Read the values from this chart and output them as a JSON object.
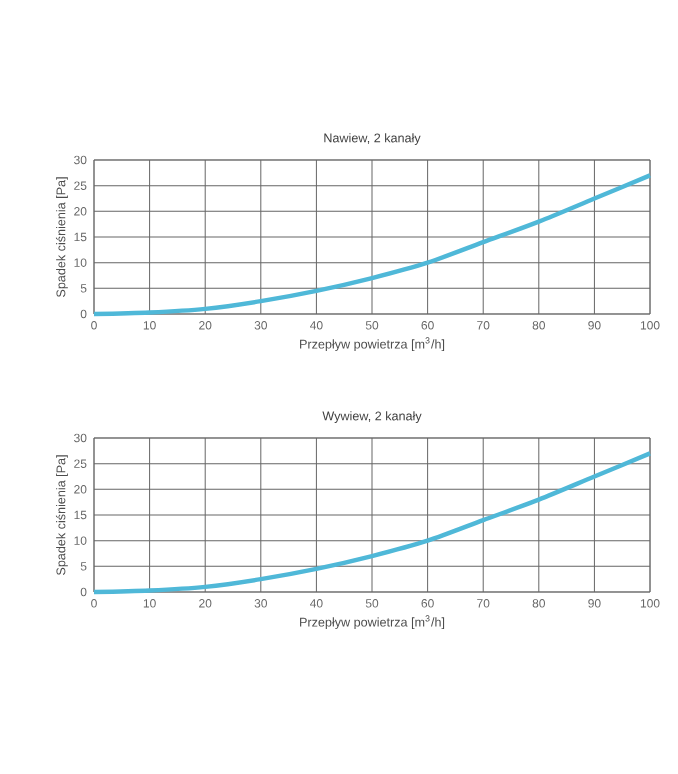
{
  "chart_data": [
    {
      "type": "line",
      "title": "Nawiew, 2 kanały",
      "xlabel": "Przepływ powietrza [m$^{3}$/h]",
      "ylabel": "Spadek ciśnienia [Pa]",
      "x": [
        0,
        10,
        20,
        30,
        40,
        50,
        60,
        70,
        80,
        90,
        100
      ],
      "values": [
        0,
        0.3,
        1,
        2.5,
        4.5,
        7,
        10,
        14,
        18,
        22.5,
        27
      ],
      "color": "#4fb8d8",
      "xlim": [
        0,
        100
      ],
      "ylim": [
        0,
        30
      ],
      "xticks": [
        0,
        10,
        20,
        30,
        40,
        50,
        60,
        70,
        80,
        90,
        100
      ],
      "yticks": [
        0,
        5,
        10,
        15,
        20,
        25,
        30
      ],
      "grid": true
    },
    {
      "type": "line",
      "title": "Wywiew, 2 kanały",
      "xlabel": "Przepływ powietrza [m$^{3}$/h]",
      "ylabel": "Spadek ciśnienia [Pa]",
      "x": [
        0,
        10,
        20,
        30,
        40,
        50,
        60,
        70,
        80,
        90,
        100
      ],
      "values": [
        0,
        0.3,
        1,
        2.5,
        4.5,
        7,
        10,
        14,
        18,
        22.5,
        27
      ],
      "color": "#4fb8d8",
      "xlim": [
        0,
        100
      ],
      "ylim": [
        0,
        30
      ],
      "xticks": [
        0,
        10,
        20,
        30,
        40,
        50,
        60,
        70,
        80,
        90,
        100
      ],
      "yticks": [
        0,
        5,
        10,
        15,
        20,
        25,
        30
      ],
      "grid": true
    }
  ]
}
